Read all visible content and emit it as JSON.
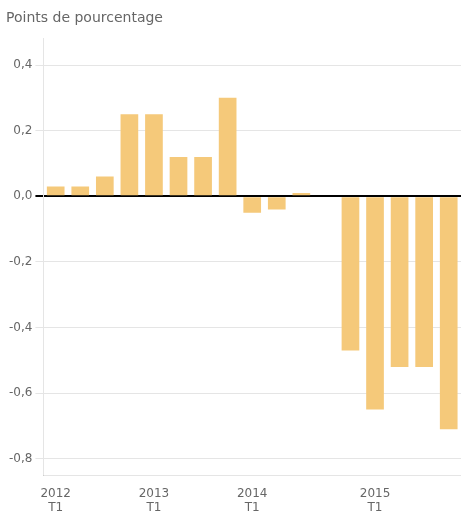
{
  "chart_data": {
    "type": "bar",
    "title": "Points de pourcentage",
    "categories": [
      "2012\nT1",
      null,
      null,
      null,
      "2013\nT1",
      null,
      null,
      null,
      "2014\nT1",
      null,
      null,
      null,
      null,
      "2015\nT1",
      null,
      null,
      null
    ],
    "values": [
      0.03,
      0.03,
      0.06,
      0.25,
      0.25,
      0.12,
      0.12,
      0.3,
      -0.05,
      -0.04,
      0.01,
      null,
      -0.47,
      -0.65,
      -0.52,
      -0.52,
      -0.71
    ],
    "color": "#F5C97A",
    "ylim": [
      -0.85,
      0.48
    ],
    "yticks": [
      {
        "value": -0.8,
        "label": "-0,8"
      },
      {
        "value": -0.6,
        "label": "-0,6"
      },
      {
        "value": -0.4,
        "label": "-0,4"
      },
      {
        "value": -0.2,
        "label": "-0,2"
      },
      {
        "value": 0.0,
        "label": "0,0"
      },
      {
        "value": 0.2,
        "label": "0,2"
      },
      {
        "value": 0.4,
        "label": "0,4"
      }
    ],
    "grid": true
  }
}
